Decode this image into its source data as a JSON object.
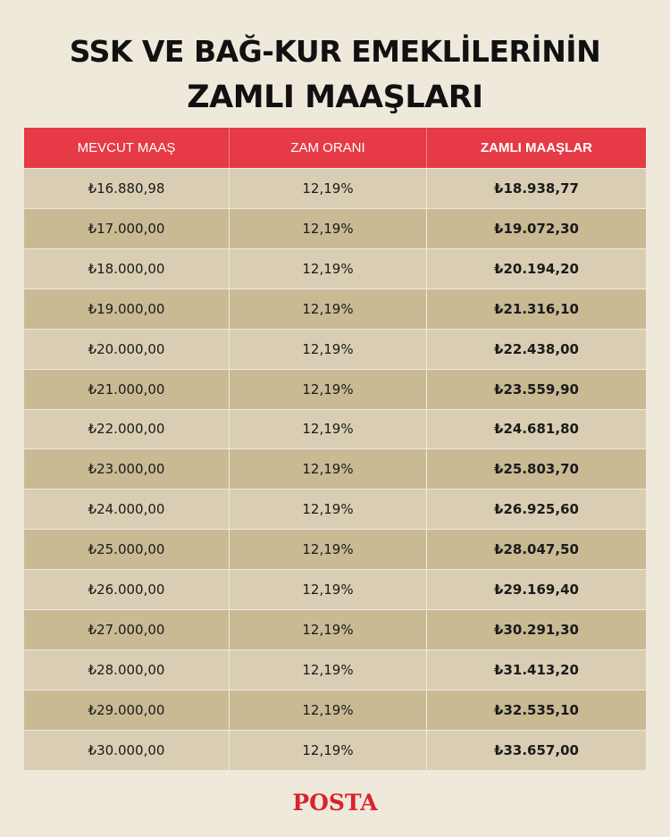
{
  "title": {
    "line1": "SSK VE BAĞ-KUR EMEKLİLERİNİN",
    "line2": "ZAMLI MAAŞLARI"
  },
  "table": {
    "headers": [
      "MEVCUT MAAŞ",
      "ZAM ORANI",
      "ZAMLI MAAŞLAR"
    ],
    "rows": [
      [
        "₺16.880,98",
        "12,19%",
        "₺18.938,77"
      ],
      [
        "₺17.000,00",
        "12,19%",
        "₺19.072,30"
      ],
      [
        "₺18.000,00",
        "12,19%",
        "₺20.194,20"
      ],
      [
        "₺19.000,00",
        "12,19%",
        "₺21.316,10"
      ],
      [
        "₺20.000,00",
        "12,19%",
        "₺22.438,00"
      ],
      [
        "₺21.000,00",
        "12,19%",
        "₺23.559,90"
      ],
      [
        "₺22.000,00",
        "12,19%",
        "₺24.681,80"
      ],
      [
        "₺23.000,00",
        "12,19%",
        "₺25.803,70"
      ],
      [
        "₺24.000,00",
        "12,19%",
        "₺26.925,60"
      ],
      [
        "₺25.000,00",
        "12,19%",
        "₺28.047,50"
      ],
      [
        "₺26.000,00",
        "12,19%",
        "₺29.169,40"
      ],
      [
        "₺27.000,00",
        "12,19%",
        "₺30.291,30"
      ],
      [
        "₺28.000,00",
        "12,19%",
        "₺31.413,20"
      ],
      [
        "₺29.000,00",
        "12,19%",
        "₺32.535,10"
      ],
      [
        "₺30.000,00",
        "12,19%",
        "₺33.657,00"
      ]
    ]
  },
  "brand": {
    "logo_text": "POSTA",
    "color": "#d8242d"
  },
  "colors": {
    "header_red": "#e63a46",
    "row_light": "#d9ceb3",
    "row_dark": "#c9ba94",
    "background": "#efe9dc"
  }
}
